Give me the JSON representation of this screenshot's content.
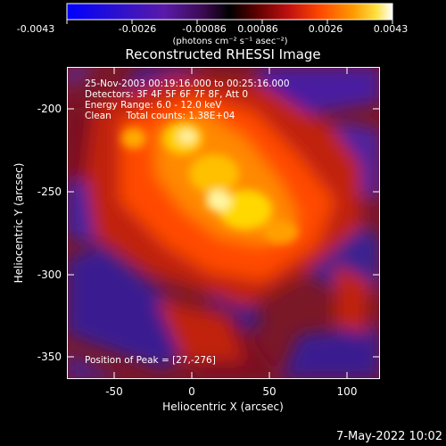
{
  "colorbar": {
    "tick_labels": [
      "-0.0043",
      "-0.0026",
      "-0.00086",
      "0.00086",
      "0.0026",
      "0.0043"
    ],
    "unit_label": "(photons cm⁻² s⁻¹ asec⁻²)",
    "colors": [
      "#0000ff",
      "#3a10c0",
      "#6a1a9a",
      "#4a0a3a",
      "#000000",
      "#6a0000",
      "#c01010",
      "#ff4a00",
      "#ff9a00",
      "#ffe040",
      "#ffffff"
    ]
  },
  "title": "Reconstructed RHESSI Image",
  "info": {
    "time_range": "25-Nov-2003 00:19:16.000 to 00:25:16.000",
    "detectors": "Detectors: 3F 4F 5F 6F 7F 8F, Att 0",
    "energy_range": "Energy Range: 6.0 - 12.0 keV",
    "method": "Clean     Total counts: 1.38E+04",
    "peak": "Position of Peak = [27,-276]"
  },
  "axes": {
    "xlabel": "Heliocentric X (arcsec)",
    "ylabel": "Heliocentric Y (arcsec)",
    "x_ticks": [
      "-50",
      "0",
      "50",
      "100"
    ],
    "y_ticks": [
      "-200",
      "-250",
      "-300",
      "-350"
    ]
  },
  "footer_date": "7-May-2022 10:02"
}
